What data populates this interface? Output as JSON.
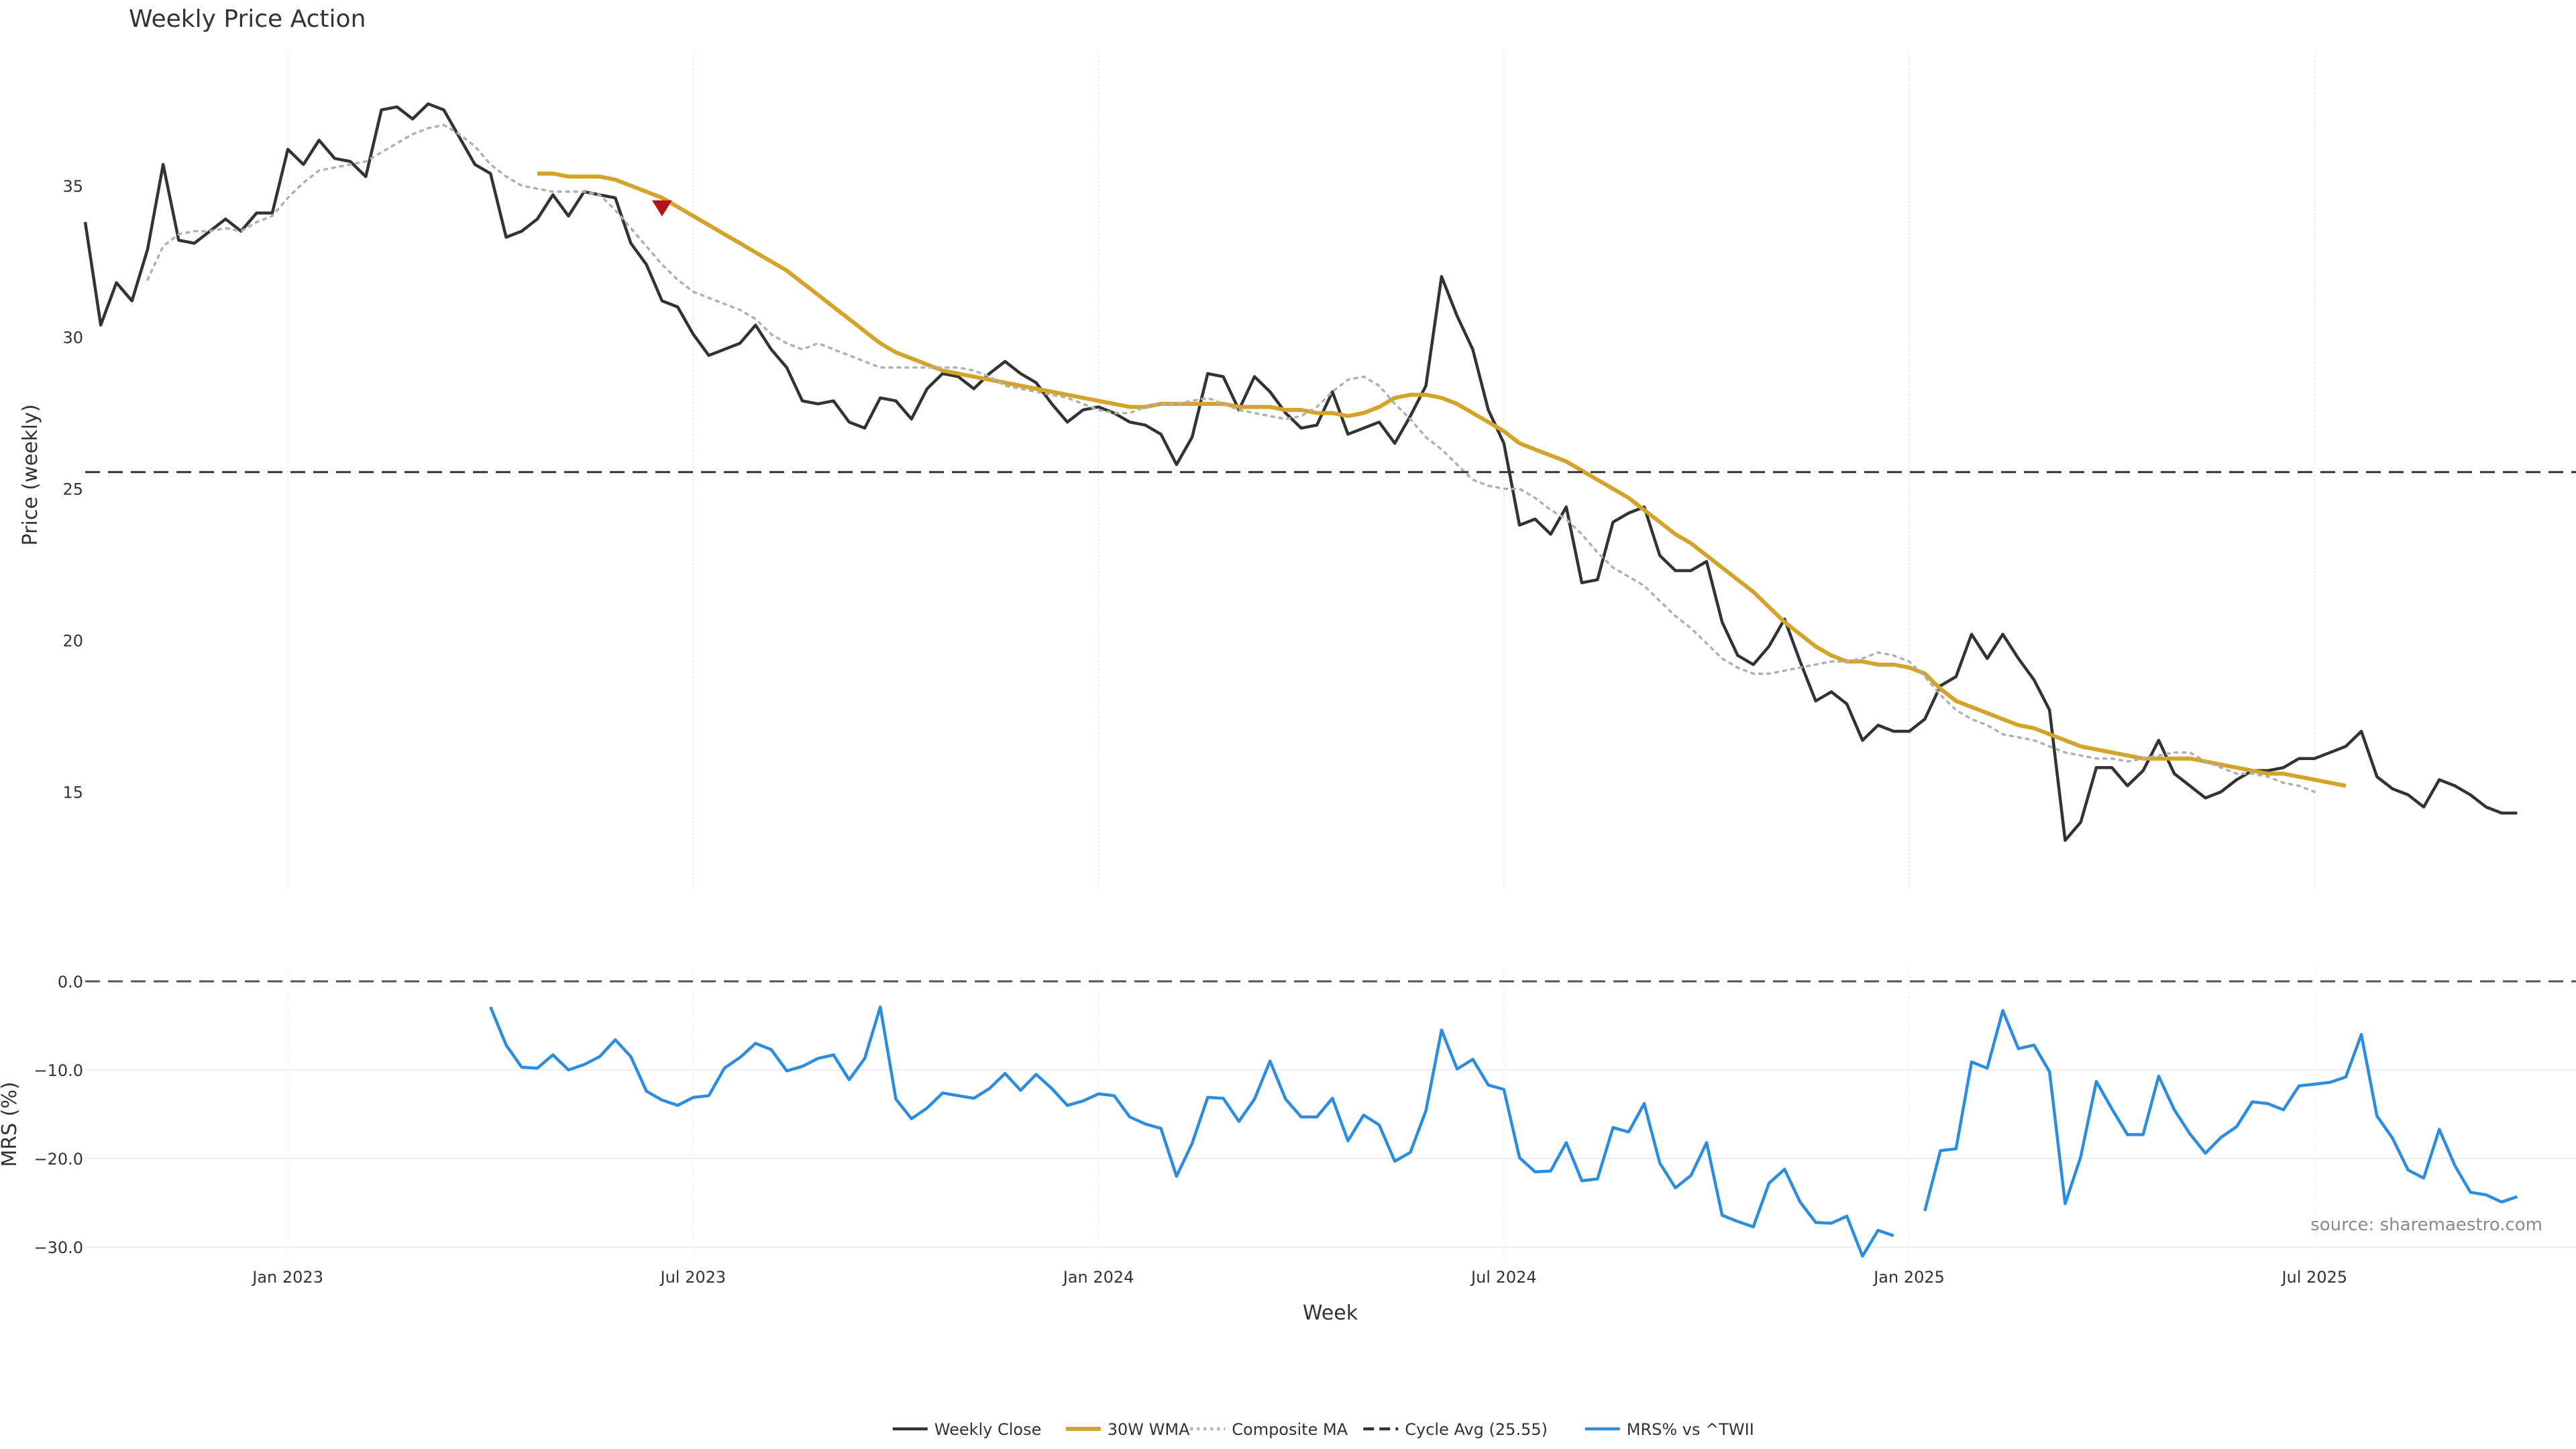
{
  "chart_data": [
    {
      "type": "line",
      "title": "Weekly Price Action",
      "ylabel": "Price (weekly)",
      "ylim": [
        11.8,
        39.4
      ],
      "yticks": [
        15,
        20,
        25,
        30,
        35
      ],
      "grid": "vertical-dotted",
      "x_start": "2022-10-03",
      "x_step_days": 7,
      "x_count": 164,
      "series": [
        {
          "name": "Weekly Close",
          "color": "#333333",
          "style": "solid",
          "values": [
            33.8,
            30.4,
            31.8,
            31.2,
            32.9,
            35.7,
            33.2,
            33.1,
            33.5,
            33.9,
            33.5,
            34.1,
            34.1,
            36.2,
            35.7,
            36.5,
            35.9,
            35.8,
            35.3,
            37.5,
            37.6,
            37.2,
            37.7,
            37.5,
            36.6,
            35.7,
            35.4,
            33.3,
            33.5,
            33.9,
            34.7,
            34.0,
            34.8,
            34.7,
            34.6,
            33.1,
            32.4,
            31.2,
            31.0,
            30.1,
            29.4,
            29.6,
            29.8,
            30.4,
            29.6,
            29.0,
            27.9,
            27.8,
            27.9,
            27.2,
            27.0,
            28.0,
            27.9,
            27.3,
            28.3,
            28.8,
            28.7,
            28.3,
            28.8,
            29.2,
            28.8,
            28.5,
            27.8,
            27.2,
            27.6,
            27.7,
            27.5,
            27.2,
            27.1,
            26.8,
            25.8,
            26.7,
            28.8,
            28.7,
            27.6,
            28.7,
            28.2,
            27.5,
            27.0,
            27.1,
            28.2,
            26.8,
            27.0,
            27.2,
            26.5,
            27.4,
            28.4,
            32.0,
            30.7,
            29.6,
            27.6,
            26.5,
            23.8,
            24.0,
            23.5,
            24.4,
            21.9,
            22.0,
            23.9,
            24.2,
            24.4,
            22.8,
            22.3,
            22.3,
            22.6,
            20.6,
            19.5,
            19.2,
            19.8,
            20.7,
            19.3,
            18.0,
            18.3,
            17.9,
            16.7,
            17.2,
            17.0,
            17.0,
            17.4,
            18.5,
            18.8,
            20.2,
            19.4,
            20.2,
            19.4,
            18.7,
            17.7,
            13.4,
            14.0,
            15.8,
            15.8,
            15.2,
            15.7,
            16.7,
            15.6,
            15.2,
            14.8,
            15.0,
            15.4,
            15.7,
            15.7,
            15.8,
            16.1,
            16.1,
            16.3,
            16.5,
            17.0,
            15.5,
            15.1,
            14.9,
            14.5,
            15.4,
            15.2,
            14.9,
            14.5,
            14.3,
            14.3
          ]
        },
        {
          "name": "30W WMA",
          "color": "#d4a32a",
          "style": "solid",
          "start_index": 29,
          "values": [
            35.4,
            35.4,
            35.3,
            35.3,
            35.3,
            35.2,
            35.0,
            34.8,
            34.6,
            34.3,
            34.0,
            33.7,
            33.4,
            33.1,
            32.8,
            32.5,
            32.2,
            31.8,
            31.4,
            31.0,
            30.6,
            30.2,
            29.8,
            29.5,
            29.3,
            29.1,
            28.9,
            28.8,
            28.7,
            28.6,
            28.5,
            28.4,
            28.3,
            28.2,
            28.1,
            28.0,
            27.9,
            27.8,
            27.7,
            27.7,
            27.8,
            27.8,
            27.8,
            27.8,
            27.8,
            27.7,
            27.7,
            27.7,
            27.6,
            27.6,
            27.5,
            27.5,
            27.4,
            27.5,
            27.7,
            28.0,
            28.1,
            28.1,
            28.0,
            27.8,
            27.5,
            27.2,
            26.9,
            26.5,
            26.3,
            26.1,
            25.9,
            25.6,
            25.3,
            25.0,
            24.7,
            24.3,
            23.9,
            23.5,
            23.2,
            22.8,
            22.4,
            22.0,
            21.6,
            21.1,
            20.6,
            20.2,
            19.8,
            19.5,
            19.3,
            19.3,
            19.2,
            19.2,
            19.1,
            18.9,
            18.4,
            18.0,
            17.8,
            17.6,
            17.4,
            17.2,
            17.1,
            16.9,
            16.7,
            16.5,
            16.4,
            16.3,
            16.2,
            16.1,
            16.1,
            16.1,
            16.1,
            16.0,
            15.9,
            15.8,
            15.7,
            15.6,
            15.6,
            15.5,
            15.4,
            15.3,
            15.2
          ]
        },
        {
          "name": "Composite MA",
          "color": "#b0b0b0",
          "style": "dotted",
          "start_index": 4,
          "values": [
            31.9,
            33.0,
            33.4,
            33.5,
            33.5,
            33.6,
            33.5,
            33.8,
            34.0,
            34.6,
            35.1,
            35.5,
            35.6,
            35.7,
            35.8,
            36.1,
            36.4,
            36.7,
            36.9,
            37.0,
            36.7,
            36.3,
            35.7,
            35.3,
            35.0,
            34.9,
            34.8,
            34.8,
            34.8,
            34.7,
            34.2,
            33.6,
            33.0,
            32.4,
            31.9,
            31.5,
            31.3,
            31.1,
            30.9,
            30.6,
            30.1,
            29.8,
            29.6,
            29.8,
            29.6,
            29.4,
            29.2,
            29.0,
            29.0,
            29.0,
            29.0,
            29.0,
            29.0,
            28.9,
            28.7,
            28.4,
            28.3,
            28.2,
            28.1,
            28.0,
            27.8,
            27.6,
            27.5,
            27.5,
            27.7,
            27.8,
            27.8,
            27.9,
            28.0,
            27.8,
            27.6,
            27.5,
            27.4,
            27.3,
            27.4,
            27.7,
            28.2,
            28.6,
            28.7,
            28.4,
            27.8,
            27.3,
            26.7,
            26.3,
            25.8,
            25.3,
            25.1,
            25.0,
            25.0,
            24.7,
            24.3,
            24.0,
            23.5,
            22.9,
            22.4,
            22.1,
            21.8,
            21.3,
            20.8,
            20.4,
            19.9,
            19.4,
            19.1,
            18.9,
            18.9,
            19.0,
            19.1,
            19.2,
            19.3,
            19.3,
            19.4,
            19.6,
            19.5,
            19.3,
            18.8,
            18.2,
            17.7,
            17.4,
            17.2,
            16.9,
            16.8,
            16.7,
            16.5,
            16.3,
            16.2,
            16.1,
            16.1,
            16.0,
            16.1,
            16.2,
            16.3,
            16.3,
            16.0,
            15.8,
            15.6,
            15.6,
            15.5,
            15.3,
            15.2,
            15.0
          ]
        },
        {
          "name": "Cycle Avg (25.55)",
          "color": "#333333",
          "style": "dashed",
          "value": 25.55
        }
      ],
      "annotations": [
        {
          "type": "marker",
          "shape": "down-triangle",
          "color": "#b5121b",
          "x_index": 37,
          "y": 34.25
        }
      ]
    },
    {
      "type": "line",
      "ylabel": "MRS (%)",
      "xlabel": "Week",
      "ylim": [
        -31.5,
        1.5
      ],
      "yticks": [
        "0.0",
        "−10.0",
        "−20.0",
        "−30.0"
      ],
      "x_ticks": [
        {
          "label": "Jan 2023",
          "index": 13
        },
        {
          "label": "Jul 2023",
          "index": 39
        },
        {
          "label": "Jan 2024",
          "index": 65
        },
        {
          "label": "Jul 2024",
          "index": 91
        },
        {
          "label": "Jan 2025",
          "index": 117
        },
        {
          "label": "Jul 2025",
          "index": 143
        }
      ],
      "zero_line": 0,
      "source_note": "source: sharemaestro.com",
      "series": [
        {
          "name": "MRS% vs ^TWII",
          "color": "#2b8de0",
          "style": "solid",
          "start_index": 26,
          "values": [
            -2.9,
            -7.2,
            -9.7,
            -9.8,
            -8.3,
            -10.0,
            -9.4,
            -8.5,
            -6.6,
            -8.5,
            -12.4,
            -13.4,
            -14.0,
            -13.1,
            -12.9,
            -9.8,
            -8.6,
            -7.0,
            -7.7,
            -10.1,
            -9.6,
            -8.7,
            -8.3,
            -11.1,
            -8.7,
            -2.9,
            -13.3,
            -15.5,
            -14.3,
            -12.6,
            -12.9,
            -13.2,
            -12.1,
            -10.4,
            -12.3,
            -10.5,
            -12.1,
            -14.0,
            -13.5,
            -12.7,
            -12.9,
            -15.3,
            -16.1,
            -16.6,
            -22.0,
            -18.3,
            -13.1,
            -13.2,
            -15.8,
            -13.3,
            -9.0,
            -13.3,
            -15.3,
            -15.3,
            -13.2,
            -18.0,
            -15.1,
            -16.2,
            -20.3,
            -19.3,
            -14.6,
            -5.5,
            -9.9,
            -8.8,
            -11.7,
            -12.2,
            -19.9,
            -21.5,
            -21.4,
            -18.2,
            -22.5,
            -22.3,
            -16.5,
            -17.0,
            -13.8,
            -20.5,
            -23.3,
            -21.9,
            -18.2,
            -26.4,
            -27.1,
            -27.7,
            -22.8,
            -21.2,
            -24.9,
            -27.2,
            -27.3,
            -26.5,
            -31.0,
            -28.1,
            -28.7,
            null,
            -25.9,
            -19.1,
            -18.9,
            -9.1,
            -9.8,
            -3.3,
            -7.6,
            -7.2,
            -10.2,
            -25.1,
            -19.8,
            -11.3,
            -14.4,
            -17.3,
            -17.3,
            -10.7,
            -14.5,
            -17.2,
            -19.4,
            -17.6,
            -16.4,
            -13.6,
            -13.8,
            -14.5,
            -11.8,
            -11.6,
            -11.4,
            -10.8,
            -6.0,
            -15.2,
            -17.7,
            -21.3,
            -22.2,
            -16.7,
            -20.8,
            -23.8,
            -24.1,
            -24.9,
            -24.3
          ]
        }
      ]
    }
  ],
  "legend": {
    "placement": "bottom-center",
    "items": [
      {
        "label": "Weekly Close",
        "color": "#333333",
        "style": "solid"
      },
      {
        "label": "30W WMA",
        "color": "#d4a32a",
        "style": "solid"
      },
      {
        "label": "Composite MA",
        "color": "#b0b0b0",
        "style": "dotted"
      },
      {
        "label": "Cycle Avg (25.55)",
        "color": "#333333",
        "style": "dashed"
      },
      {
        "label": "MRS% vs ^TWII",
        "color": "#2b8de0",
        "style": "solid"
      }
    ]
  }
}
